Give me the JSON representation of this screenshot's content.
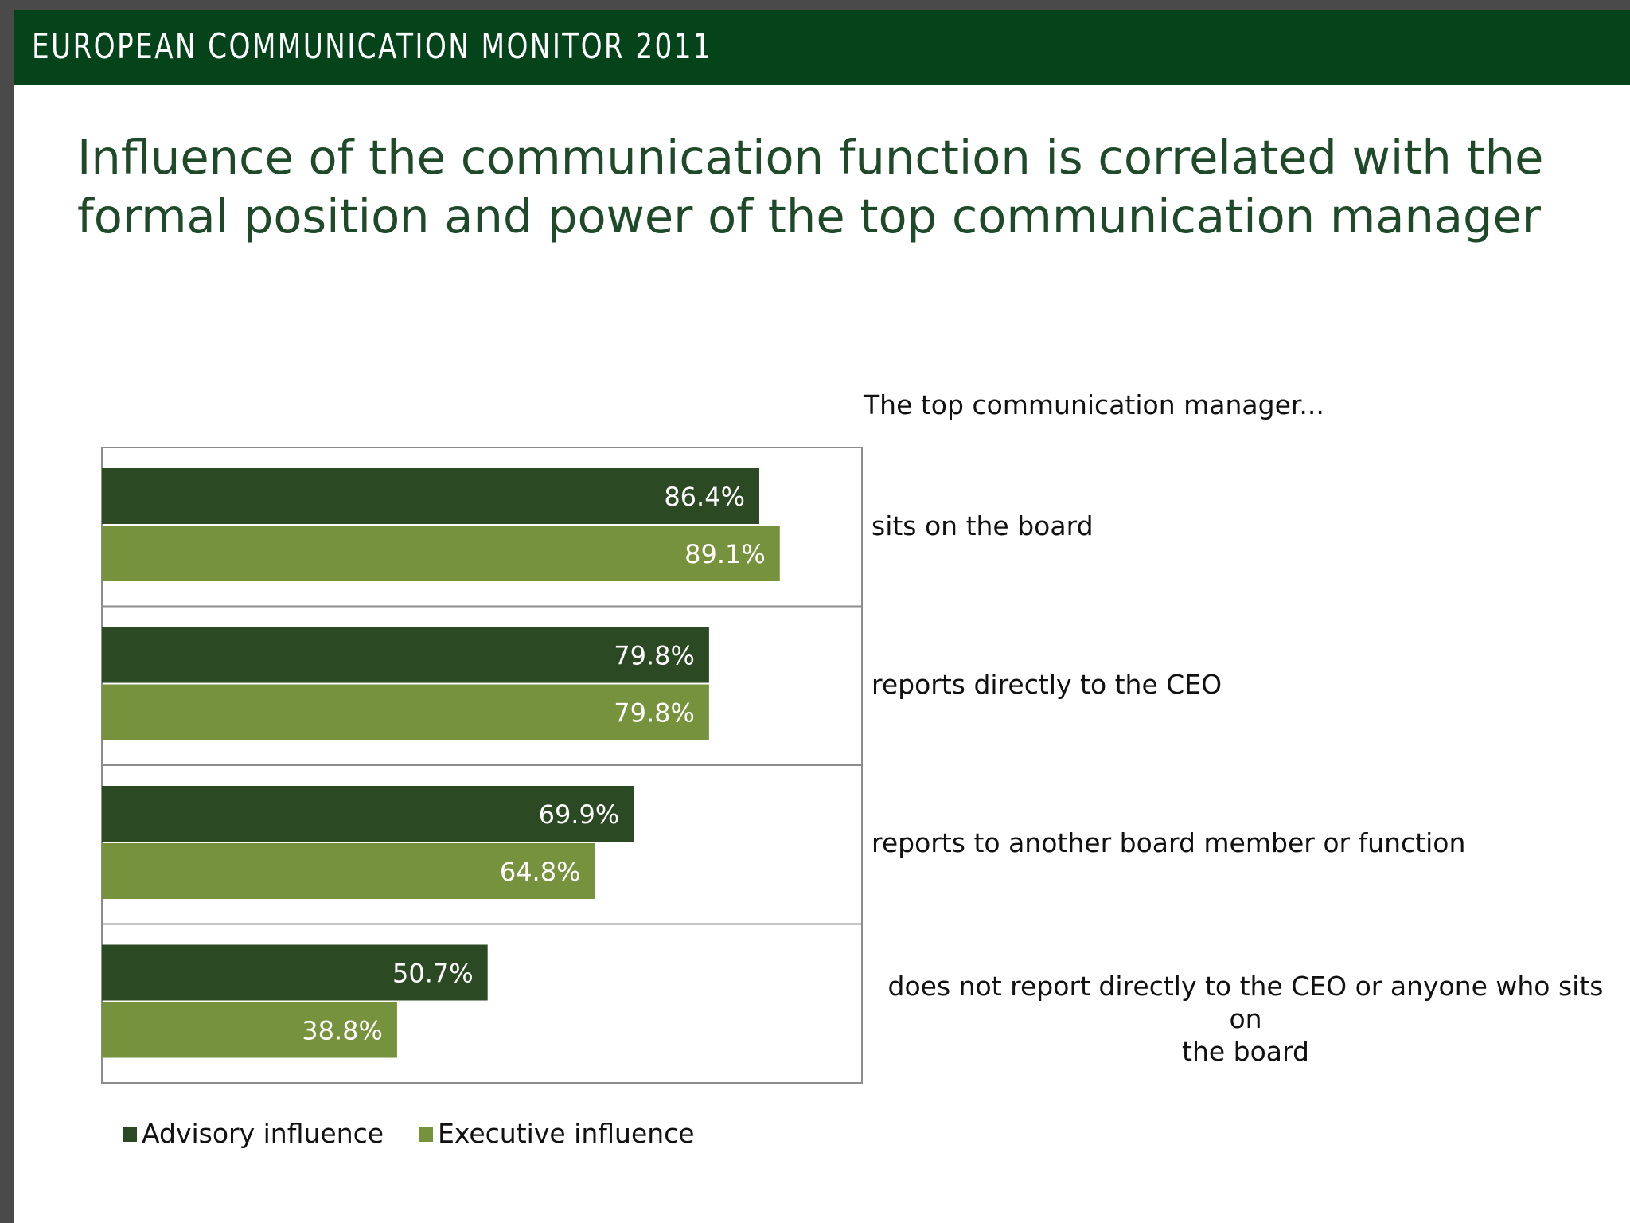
{
  "header": {
    "title": "EUROPEAN COMMUNICATION MONITOR 2011"
  },
  "slide": {
    "title_lines": [
      "Influence of the communication function is correlated with the",
      "formal position and power of the top communication manager"
    ]
  },
  "chart_data": {
    "type": "bar",
    "orientation": "horizontal",
    "subtitle": "The top communication manager...",
    "categories": [
      "sits on the board",
      "reports directly to the CEO",
      "reports to another board member or function",
      "does not report directly to the CEO or anyone who sits on the board"
    ],
    "category_lines": [
      [
        "sits on the board"
      ],
      [
        "reports directly to the CEO"
      ],
      [
        "reports to another board member or function"
      ],
      [
        "does not report directly to the CEO or anyone who sits on",
        "the board"
      ]
    ],
    "series": [
      {
        "name": "Advisory influence",
        "values": [
          86.4,
          79.8,
          69.9,
          50.7
        ],
        "color": "#2b4a23"
      },
      {
        "name": "Executive influence",
        "values": [
          89.1,
          79.8,
          64.8,
          38.8
        ],
        "color": "#76923c"
      }
    ],
    "value_format": "%",
    "xlim": [
      0,
      100
    ],
    "legend": "bottom-left",
    "grid": false
  }
}
